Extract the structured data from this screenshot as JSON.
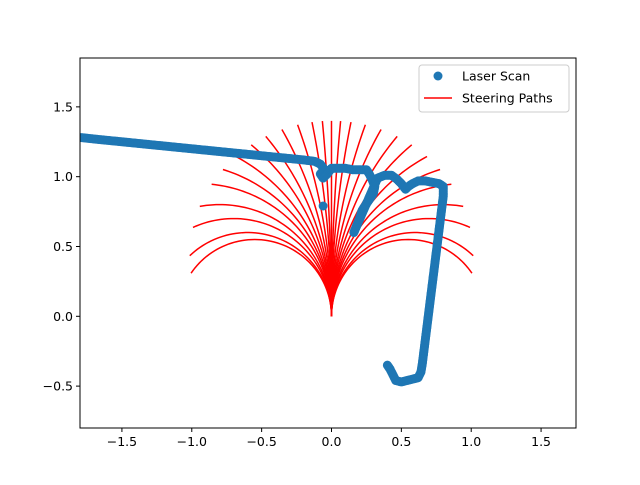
{
  "chart_data": {
    "type": "scatter",
    "title": "",
    "xlabel": "",
    "ylabel": "",
    "xlim": [
      -1.8,
      1.75
    ],
    "ylim": [
      -0.8,
      1.85
    ],
    "xticks": [
      -1.5,
      -1.0,
      -0.5,
      0.0,
      0.5,
      1.0,
      1.5
    ],
    "xtick_labels": [
      "−1.5",
      "−1.0",
      "−0.5",
      "0.0",
      "0.5",
      "1.0",
      "1.5"
    ],
    "yticks": [
      -0.5,
      0.0,
      0.5,
      1.0,
      1.5
    ],
    "ytick_labels": [
      "−0.5",
      "0.0",
      "0.5",
      "1.0",
      "1.5"
    ],
    "grid": false,
    "legend_position": "top-right",
    "legend": [
      {
        "label": "Laser Scan",
        "marker": "circle",
        "color": "#1f77b4"
      },
      {
        "label": "Steering Paths",
        "marker": "line",
        "color": "#ff0000"
      }
    ],
    "series": [
      {
        "name": "Laser Scan",
        "kind": "scatter",
        "color": "#1f77b4",
        "points": [
          [
            -1.79,
            1.28
          ],
          [
            -1.7,
            1.27
          ],
          [
            -1.6,
            1.26
          ],
          [
            -1.5,
            1.25
          ],
          [
            -1.4,
            1.24
          ],
          [
            -1.3,
            1.23
          ],
          [
            -1.2,
            1.22
          ],
          [
            -1.1,
            1.21
          ],
          [
            -1.0,
            1.2
          ],
          [
            -0.9,
            1.19
          ],
          [
            -0.8,
            1.18
          ],
          [
            -0.7,
            1.17
          ],
          [
            -0.6,
            1.16
          ],
          [
            -0.5,
            1.15
          ],
          [
            -0.4,
            1.14
          ],
          [
            -0.3,
            1.13
          ],
          [
            -0.2,
            1.12
          ],
          [
            -0.12,
            1.11
          ],
          [
            -0.08,
            1.09
          ],
          [
            -0.05,
            1.05
          ],
          [
            -0.08,
            1.02
          ],
          [
            -0.06,
            0.99
          ],
          [
            -0.03,
            1.02
          ],
          [
            0.0,
            1.06
          ],
          [
            0.05,
            1.06
          ],
          [
            0.1,
            1.06
          ],
          [
            0.15,
            1.05
          ],
          [
            0.2,
            1.05
          ],
          [
            0.25,
            1.05
          ],
          [
            0.27,
            1.02
          ],
          [
            0.29,
            0.98
          ],
          [
            0.31,
            0.93
          ],
          [
            0.3,
            0.88
          ],
          [
            0.26,
            0.82
          ],
          [
            0.22,
            0.76
          ],
          [
            0.2,
            0.7
          ],
          [
            0.18,
            0.65
          ],
          [
            0.16,
            0.6
          ],
          [
            0.33,
            0.99
          ],
          [
            0.38,
            1.01
          ],
          [
            0.43,
            1.01
          ],
          [
            0.47,
            0.98
          ],
          [
            0.5,
            0.95
          ],
          [
            0.53,
            0.91
          ],
          [
            0.55,
            0.93
          ],
          [
            0.58,
            0.95
          ],
          [
            0.62,
            0.97
          ],
          [
            0.67,
            0.97
          ],
          [
            0.72,
            0.96
          ],
          [
            0.77,
            0.95
          ],
          [
            0.8,
            0.93
          ],
          [
            0.8,
            0.86
          ],
          [
            0.79,
            0.78
          ],
          [
            0.78,
            0.7
          ],
          [
            0.77,
            0.62
          ],
          [
            0.76,
            0.54
          ],
          [
            0.75,
            0.46
          ],
          [
            0.74,
            0.38
          ],
          [
            0.73,
            0.3
          ],
          [
            0.72,
            0.22
          ],
          [
            0.71,
            0.14
          ],
          [
            0.7,
            0.06
          ],
          [
            0.69,
            -0.02
          ],
          [
            0.68,
            -0.1
          ],
          [
            0.67,
            -0.18
          ],
          [
            0.66,
            -0.26
          ],
          [
            0.65,
            -0.34
          ],
          [
            0.64,
            -0.4
          ],
          [
            0.62,
            -0.44
          ],
          [
            0.58,
            -0.45
          ],
          [
            0.54,
            -0.46
          ],
          [
            0.5,
            -0.47
          ],
          [
            0.46,
            -0.46
          ],
          [
            0.44,
            -0.42
          ],
          [
            0.42,
            -0.38
          ],
          [
            0.4,
            -0.35
          ],
          [
            -0.06,
            0.79
          ]
        ]
      },
      {
        "name": "Steering Paths",
        "kind": "arcs",
        "color": "#ff0000",
        "arc_length": 1.4,
        "radii": [
          0.55,
          0.6,
          0.7,
          0.8,
          0.95,
          1.1,
          1.3,
          1.6,
          2.0,
          2.7,
          4.0,
          7.0,
          15.0,
          null,
          -15.0,
          -7.0,
          -4.0,
          -2.7,
          -2.0,
          -1.6,
          -1.3,
          -1.1,
          -0.95,
          -0.8,
          -0.7,
          -0.6,
          -0.55
        ]
      }
    ]
  }
}
